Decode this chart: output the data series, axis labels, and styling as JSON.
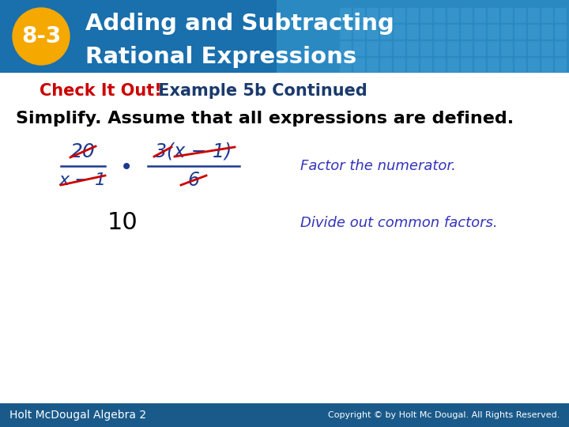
{
  "title_line1": "Adding and Subtracting",
  "title_line2": "Rational Expressions",
  "lesson_num": "8-3",
  "header_bg_color": "#1a6fad",
  "header_gradient_color": "#3a9fd4",
  "lesson_badge_color": "#f5a800",
  "check_it_out_color": "#cc0000",
  "example_text_color": "#1a3a6b",
  "subtitle_check": "Check It Out!",
  "subtitle_example": " Example 5b Continued",
  "body_text": "Simplify. Assume that all expressions are defined.",
  "body_text_color": "#000000",
  "blue_color": "#1a3a8f",
  "red_color": "#cc0000",
  "annotation_color": "#3333bb",
  "footer_bg": "#1a5a8a",
  "footer_left": "Holt McDougal Algebra 2",
  "footer_right": "Copyright © by Holt Mc Dougal. All Rights Reserved.",
  "background_color": "#ffffff",
  "figw": 7.2,
  "figh": 5.4,
  "dpi": 100
}
